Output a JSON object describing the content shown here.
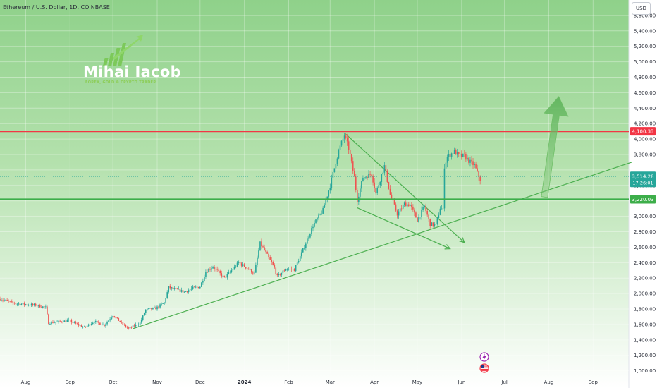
{
  "header": {
    "symbol": "Ethereum / U.S. Dollar, 1D, COINBASE",
    "currency_button": "USD"
  },
  "branding": {
    "name": "Mihai Iacob",
    "tagline": "FOREX, GOLD & CRYPTO TRADER"
  },
  "colors": {
    "background_top": "#8fd18a",
    "background_bottom": "#ffffff",
    "resistance": "#f23645",
    "support": "#3dae4a",
    "up_candle": "#26a69a",
    "down_candle": "#ef5350",
    "trendline": "#4caf50",
    "price_badge": "#26a69a"
  },
  "chart_data": {
    "type": "candlestick",
    "title": "Ethereum / U.S. Dollar, 1D, COINBASE",
    "y_ticks": [
      1000,
      1200,
      1400,
      1600,
      1800,
      2000,
      2200,
      2400,
      2600,
      2800,
      3000,
      3200,
      3400,
      3600,
      3800,
      4000,
      4200,
      4400,
      4600,
      4800,
      5000,
      5200,
      5400,
      5600
    ],
    "y_tick_labels": [
      "1,000.00",
      "1,200.00",
      "1,400.00",
      "1,600.00",
      "1,800.00",
      "2,000.00",
      "2,200.00",
      "2,400.00",
      "2,600.00",
      "2,800.00",
      "3,000.00",
      "3,200.00",
      "3,400.00",
      "3,600.00",
      "3,800.00",
      "4,000.00",
      "4,200.00",
      "4,400.00",
      "4,600.00",
      "4,800.00",
      "5,000.00",
      "5,200.00",
      "5,400.00",
      "5,600.00"
    ],
    "ylim": [
      960,
      5800
    ],
    "x_ticks": [
      "2023-08-01",
      "2023-09-01",
      "2023-10-01",
      "2023-11-01",
      "2023-12-01",
      "2024-01-01",
      "2024-02-01",
      "2024-03-01",
      "2024-04-01",
      "2024-05-01",
      "2024-06-01",
      "2024-07-01",
      "2024-08-01",
      "2024-09-01"
    ],
    "x_tick_labels": [
      "Aug",
      "Sep",
      "Oct",
      "Nov",
      "Dec",
      "2024",
      "Feb",
      "Mar",
      "Apr",
      "May",
      "Jun",
      "Jul",
      "Aug",
      "Sep"
    ],
    "xlim": [
      "2023-07-14",
      "2024-09-26"
    ],
    "legend": "none",
    "price_path": [
      [
        "2023-07-14",
        1930
      ],
      [
        "2023-07-25",
        1870
      ],
      [
        "2023-08-08",
        1850
      ],
      [
        "2023-08-15",
        1820
      ],
      [
        "2023-08-17",
        1620
      ],
      [
        "2023-08-31",
        1650
      ],
      [
        "2023-09-11",
        1560
      ],
      [
        "2023-09-18",
        1640
      ],
      [
        "2023-09-25",
        1590
      ],
      [
        "2023-10-01",
        1720
      ],
      [
        "2023-10-08",
        1600
      ],
      [
        "2023-10-12",
        1545
      ],
      [
        "2023-10-20",
        1620
      ],
      [
        "2023-10-24",
        1790
      ],
      [
        "2023-10-31",
        1810
      ],
      [
        "2023-11-06",
        1880
      ],
      [
        "2023-11-09",
        2080
      ],
      [
        "2023-11-13",
        2060
      ],
      [
        "2023-11-20",
        2020
      ],
      [
        "2023-11-26",
        2070
      ],
      [
        "2023-12-01",
        2090
      ],
      [
        "2023-12-05",
        2280
      ],
      [
        "2023-12-10",
        2350
      ],
      [
        "2023-12-18",
        2200
      ],
      [
        "2023-12-23",
        2300
      ],
      [
        "2023-12-28",
        2400
      ],
      [
        "2024-01-02",
        2340
      ],
      [
        "2024-01-08",
        2260
      ],
      [
        "2024-01-12",
        2650
      ],
      [
        "2024-01-15",
        2560
      ],
      [
        "2024-01-22",
        2330
      ],
      [
        "2024-01-24",
        2220
      ],
      [
        "2024-01-30",
        2320
      ],
      [
        "2024-02-05",
        2310
      ],
      [
        "2024-02-10",
        2520
      ],
      [
        "2024-02-18",
        2880
      ],
      [
        "2024-02-25",
        3080
      ],
      [
        "2024-03-01",
        3400
      ],
      [
        "2024-03-07",
        3850
      ],
      [
        "2024-03-11",
        4050
      ],
      [
        "2024-03-14",
        3880
      ],
      [
        "2024-03-18",
        3500
      ],
      [
        "2024-03-20",
        3210
      ],
      [
        "2024-03-24",
        3500
      ],
      [
        "2024-03-30",
        3550
      ],
      [
        "2024-04-02",
        3300
      ],
      [
        "2024-04-08",
        3650
      ],
      [
        "2024-04-12",
        3280
      ],
      [
        "2024-04-17",
        3030
      ],
      [
        "2024-04-22",
        3160
      ],
      [
        "2024-04-26",
        3150
      ],
      [
        "2024-05-01",
        2950
      ],
      [
        "2024-05-06",
        3130
      ],
      [
        "2024-05-10",
        2900
      ],
      [
        "2024-05-14",
        2880
      ],
      [
        "2024-05-17",
        3110
      ],
      [
        "2024-05-19",
        3080
      ],
      [
        "2024-05-20",
        3650
      ],
      [
        "2024-05-22",
        3770
      ],
      [
        "2024-05-27",
        3840
      ],
      [
        "2024-05-30",
        3780
      ],
      [
        "2024-06-03",
        3780
      ],
      [
        "2024-06-07",
        3700
      ],
      [
        "2024-06-10",
        3660
      ],
      [
        "2024-06-12",
        3560
      ],
      [
        "2024-06-14",
        3480
      ]
    ],
    "levels": [
      {
        "value": 4100.33,
        "label": "4,100.33",
        "role": "resistance"
      },
      {
        "value": 3220.03,
        "label": "3,220.03",
        "role": "support"
      }
    ],
    "last_price": {
      "value": 3514.28,
      "label": "3,514.28",
      "countdown": "17:26:01"
    },
    "trendlines": [
      {
        "from": [
          "2023-10-15",
          1545
        ],
        "to": [
          "2024-09-28",
          3700
        ]
      },
      {
        "from": [
          "2024-03-11",
          4080
        ],
        "to": [
          "2024-06-03",
          2660
        ]
      },
      {
        "from": [
          "2024-03-20",
          3110
        ],
        "to": [
          "2024-05-24",
          2580
        ]
      }
    ],
    "projection_arrow": {
      "from": [
        "2024-07-29",
        3250
      ],
      "to": [
        "2024-08-08",
        4550
      ]
    },
    "event_icons": [
      "lightning-icon",
      "us-flag-icon"
    ]
  }
}
